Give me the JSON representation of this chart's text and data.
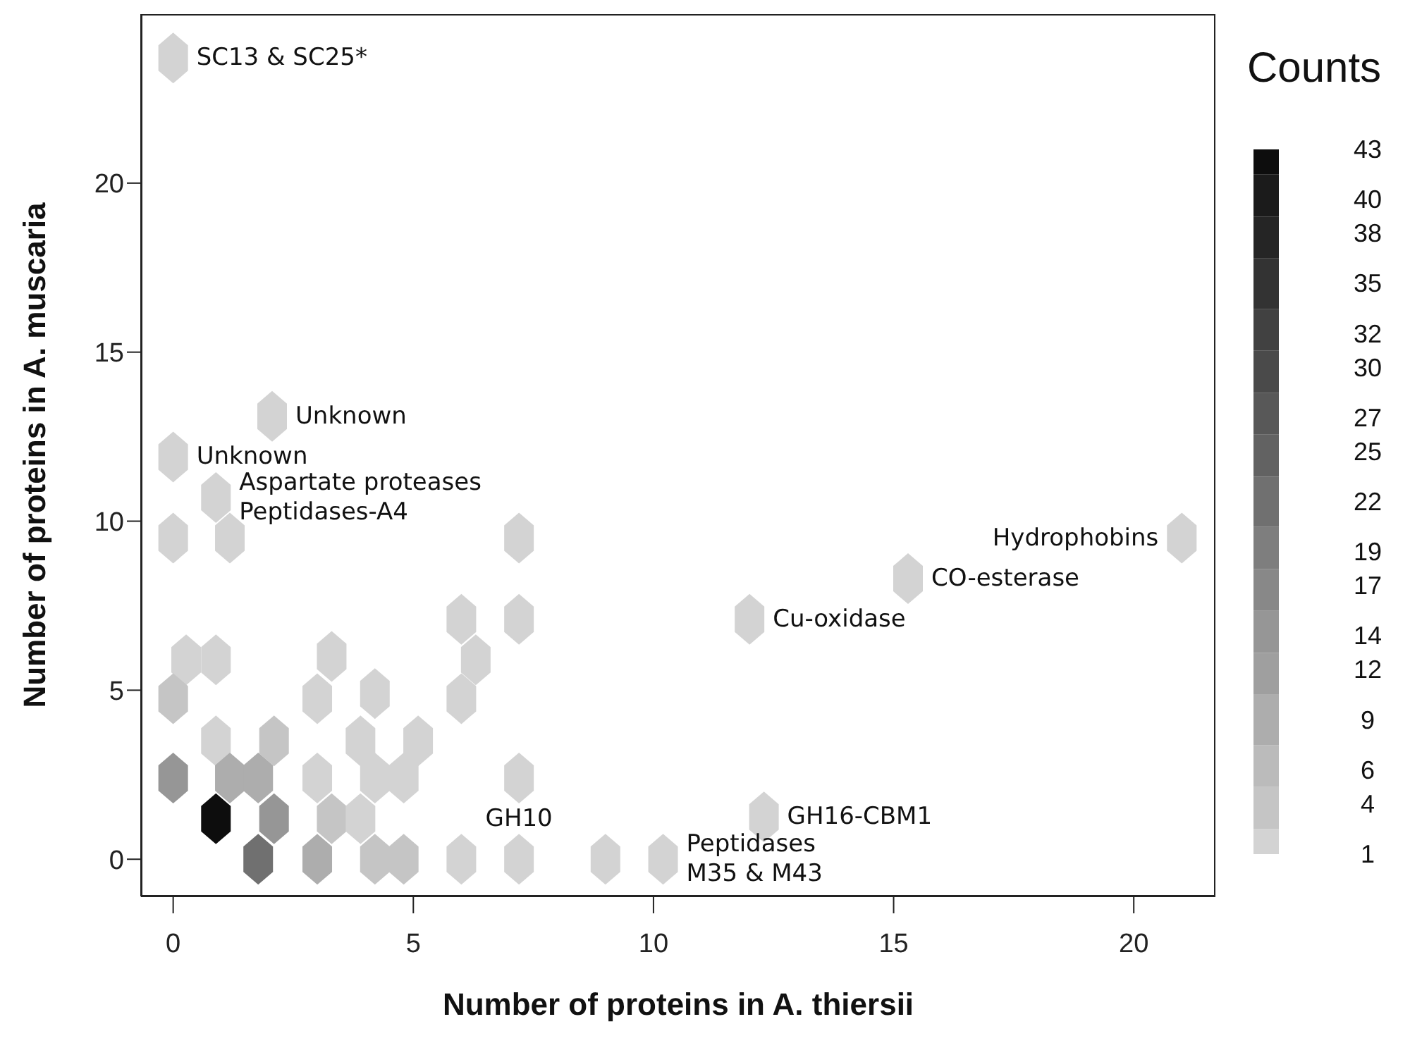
{
  "chart_data": {
    "type": "scatter",
    "xlabel": "Number of proteins in A. thiersii",
    "ylabel": "Number of proteins in A. muscaria",
    "clabel": "Counts",
    "x": [
      0,
      2.06,
      0,
      0.89,
      0,
      1.18,
      7.2,
      21.0,
      15.3,
      12.0,
      6.0,
      7.2,
      0.27,
      0.89,
      3.3,
      6.3,
      0,
      3.0,
      4.2,
      6.0,
      0.89,
      2.1,
      3.9,
      5.1,
      0,
      1.18,
      1.77,
      3.0,
      4.2,
      4.8,
      7.2,
      0.89,
      2.1,
      3.3,
      3.9,
      12.3,
      1.77,
      3.0,
      4.2,
      4.8,
      6.0,
      7.2,
      9.0,
      10.2
    ],
    "values": [
      23.7,
      13.1,
      11.9,
      10.7,
      9.5,
      9.5,
      9.5,
      9.5,
      8.3,
      7.1,
      7.1,
      7.1,
      5.9,
      5.9,
      6.0,
      5.9,
      4.75,
      4.75,
      4.9,
      4.75,
      3.5,
      3.5,
      3.5,
      3.5,
      2.4,
      2.4,
      2.4,
      2.4,
      2.4,
      2.4,
      2.4,
      1.2,
      1.2,
      1.2,
      1.2,
      1.25,
      0,
      0,
      0,
      0,
      0,
      0,
      0,
      0
    ],
    "cvalues": [
      1,
      1,
      1,
      1,
      1,
      1,
      1,
      1,
      1,
      1,
      1,
      1,
      1,
      1,
      1,
      1,
      4,
      1,
      1,
      1,
      1,
      4,
      1,
      1,
      14,
      9,
      9,
      1,
      1,
      1,
      1,
      43,
      14,
      4,
      1,
      1,
      22,
      9,
      4,
      4,
      1,
      1,
      1,
      1
    ],
    "clim": [
      1,
      43
    ],
    "cticks": [
      1,
      4,
      6,
      9,
      12,
      14,
      17,
      19,
      22,
      25,
      27,
      30,
      32,
      35,
      38,
      40,
      43
    ],
    "xlim": [
      -0.67,
      21.7
    ],
    "xticks": [
      0,
      5,
      10,
      15,
      20
    ],
    "ylim": [
      -1.1,
      25.0
    ],
    "yticks": [
      0,
      5,
      10,
      15,
      20
    ],
    "annotations": [
      {
        "text": "SC13 & SC25*",
        "x": 0,
        "y": 23.7
      },
      {
        "text": "Unknown",
        "x": 2.06,
        "y": 13.1
      },
      {
        "text": "Unknown",
        "x": 0,
        "y": 11.9
      },
      {
        "text": "Aspartate proteases\nPeptidases-A4",
        "x": 0.89,
        "y": 10.7
      },
      {
        "text": "Hydrophobins",
        "x": 21.0,
        "y": 9.5
      },
      {
        "text": "CO-esterase",
        "x": 15.3,
        "y": 8.3
      },
      {
        "text": "Cu-oxidase",
        "x": 12.0,
        "y": 7.1
      },
      {
        "text": "Peptidases\nM35 & M43",
        "x": 10.2,
        "y": 0
      },
      {
        "text": "GH10",
        "x": 7.2,
        "y": 0
      },
      {
        "text": "GH16-CBM1",
        "x": 12.3,
        "y": 1.25
      }
    ]
  }
}
